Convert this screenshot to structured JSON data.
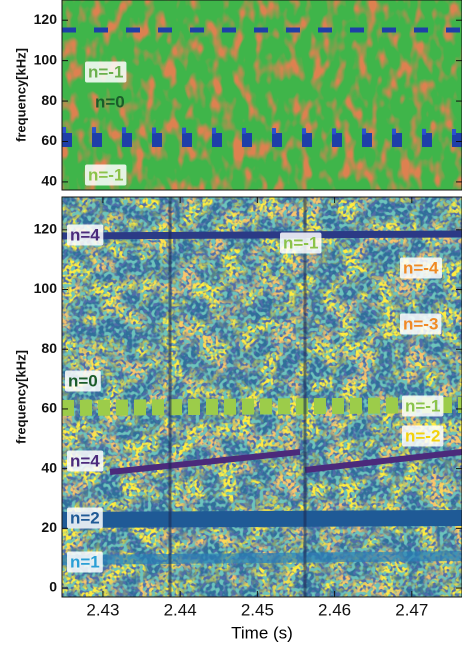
{
  "chart_data": [
    {
      "type": "spectrogram",
      "ylabel": "frequency[kHz]",
      "ylim": [
        36,
        130
      ],
      "yticks": [
        40,
        60,
        80,
        100,
        120
      ],
      "annotations": [
        {
          "text": "n=-1",
          "color": "#6ab04c"
        },
        {
          "text": "n=0",
          "color": "#1a5c2a"
        },
        {
          "text": "n=-1",
          "color": "#8bc34a"
        }
      ]
    },
    {
      "type": "spectrogram",
      "ylabel": "frequency[kHz]",
      "xlabel": "Time (s)",
      "xlim": [
        2.4247,
        2.4765
      ],
      "xticks": [
        2.43,
        2.44,
        2.45,
        2.46,
        2.47
      ],
      "ylim": [
        -3,
        131
      ],
      "yticks": [
        0,
        20,
        40,
        60,
        80,
        100,
        120
      ],
      "annotations": [
        {
          "text": "n=4",
          "color": "#4b2a7b"
        },
        {
          "text": "n=-1",
          "color": "#8bc34a"
        },
        {
          "text": "n=-4",
          "color": "#f08a24"
        },
        {
          "text": "n=-3",
          "color": "#f08a24"
        },
        {
          "text": "n=0",
          "color": "#1a5c2a"
        },
        {
          "text": "n=-1",
          "color": "#8bc34a"
        },
        {
          "text": "n=-2",
          "color": "#f2d20c"
        },
        {
          "text": "n=4",
          "color": "#4b2a7b"
        },
        {
          "text": "n=2",
          "color": "#1f5a96"
        },
        {
          "text": "n=1",
          "color": "#2a9fd6"
        }
      ]
    }
  ]
}
